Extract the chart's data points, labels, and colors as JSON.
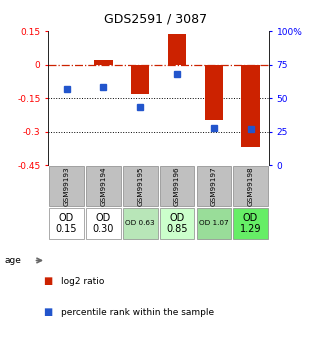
{
  "title": "GDS2591 / 3087",
  "samples": [
    "GSM99193",
    "GSM99194",
    "GSM99195",
    "GSM99196",
    "GSM99197",
    "GSM99198"
  ],
  "log2_ratio": [
    0.0,
    0.02,
    -0.13,
    0.135,
    -0.25,
    -0.37
  ],
  "percentile_rank": [
    57,
    58,
    43,
    68,
    28,
    27
  ],
  "ylim_left": [
    -0.45,
    0.15
  ],
  "ylim_right": [
    0,
    100
  ],
  "bar_color": "#cc2200",
  "dot_color": "#2255cc",
  "age_labels": [
    "OD\n0.15",
    "OD\n0.30",
    "OD 0.63",
    "OD\n0.85",
    "OD 1.07",
    "OD\n1.29"
  ],
  "age_bg": [
    "#ffffff",
    "#ffffff",
    "#b8e6b8",
    "#ccffcc",
    "#99dd99",
    "#66ee66"
  ],
  "age_fontsize_big": [
    true,
    true,
    false,
    true,
    false,
    true
  ],
  "sample_bg": "#c0c0c0",
  "legend_bar": "log2 ratio",
  "legend_dot": "percentile rank within the sample"
}
